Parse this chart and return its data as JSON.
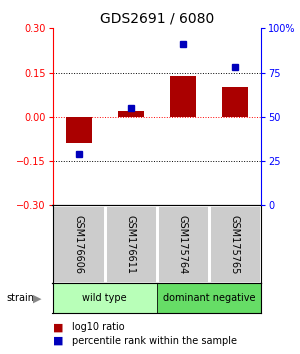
{
  "title": "GDS2691 / 6080",
  "samples": [
    "GSM176606",
    "GSM176611",
    "GSM175764",
    "GSM175765"
  ],
  "log10_ratio": [
    -0.09,
    0.02,
    0.14,
    0.1
  ],
  "percentile_rank": [
    29,
    55,
    91,
    78
  ],
  "ylim_left": [
    -0.3,
    0.3
  ],
  "ylim_right": [
    0,
    100
  ],
  "yticks_left": [
    -0.3,
    -0.15,
    0,
    0.15,
    0.3
  ],
  "yticks_right": [
    0,
    25,
    50,
    75,
    100
  ],
  "ytick_labels_right": [
    "0",
    "25",
    "50",
    "75",
    "100%"
  ],
  "hlines_dotted": [
    -0.15,
    0.15
  ],
  "hline_red": 0,
  "bar_color": "#aa0000",
  "square_color": "#0000bb",
  "groups": [
    {
      "label": "wild type",
      "samples": [
        0,
        1
      ],
      "color": "#b8ffb8"
    },
    {
      "label": "dominant negative",
      "samples": [
        2,
        3
      ],
      "color": "#66dd66"
    }
  ],
  "group_row_label": "strain",
  "sample_box_color": "#cccccc",
  "legend_items": [
    {
      "color": "#aa0000",
      "label": "log10 ratio"
    },
    {
      "color": "#0000bb",
      "label": "percentile rank within the sample"
    }
  ],
  "title_fontsize": 10,
  "tick_fontsize": 7,
  "label_fontsize": 7,
  "sample_fontsize": 7,
  "group_fontsize": 7,
  "legend_fontsize": 7
}
